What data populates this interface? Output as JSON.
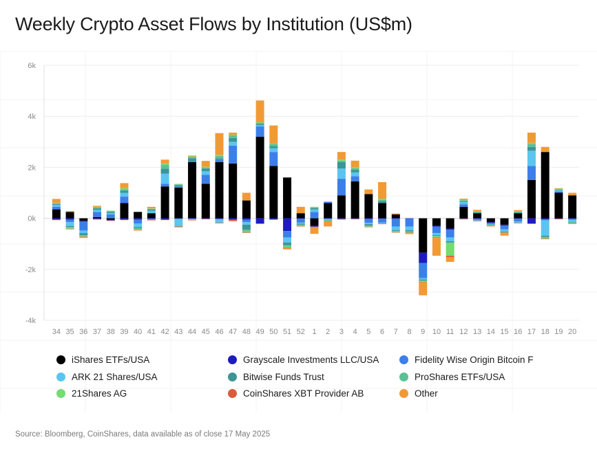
{
  "chart_data": {
    "type": "bar",
    "stacked": true,
    "title": "Weekly Crypto Asset Flows by Institution (US$m)",
    "ylim": [
      -4000,
      6000
    ],
    "yticks": [
      -4000,
      -2000,
      0,
      2000,
      4000,
      6000
    ],
    "ytick_labels": [
      "-4k",
      "-2k",
      "0k",
      "2k",
      "4k",
      "6k"
    ],
    "grid": true,
    "legend_position": "bottom",
    "categories": [
      "34",
      "35",
      "36",
      "37",
      "38",
      "39",
      "40",
      "41",
      "42",
      "43",
      "44",
      "45",
      "46",
      "47",
      "48",
      "49",
      "50",
      "51",
      "52",
      "1",
      "2",
      "3",
      "4",
      "5",
      "6",
      "7",
      "8",
      "9",
      "10",
      "11",
      "12",
      "13",
      "14",
      "15",
      "16",
      "17",
      "18",
      "19",
      "20"
    ],
    "series": [
      {
        "name": "iShares ETFs/USA",
        "color": "#000000",
        "values": [
          350,
          250,
          -100,
          50,
          -50,
          600,
          250,
          200,
          1250,
          1200,
          2200,
          1350,
          2200,
          2150,
          700,
          3200,
          2050,
          1600,
          200,
          -300,
          600,
          900,
          1450,
          950,
          600,
          150,
          0,
          -1350,
          -300,
          -400,
          450,
          200,
          -150,
          -250,
          200,
          1500,
          2600,
          1000,
          900
        ]
      },
      {
        "name": "Grayscale Investments LLC/USA",
        "color": "#1d1bbf",
        "values": [
          -50,
          -50,
          -30,
          -30,
          -30,
          -50,
          -50,
          -20,
          -50,
          -20,
          -20,
          -20,
          -30,
          -50,
          -50,
          -200,
          -40,
          -500,
          -20,
          -30,
          -20,
          -30,
          -20,
          -30,
          -20,
          -20,
          -20,
          -400,
          -30,
          -50,
          -20,
          -20,
          -40,
          -30,
          -20,
          -200,
          -40,
          -20,
          -30
        ]
      },
      {
        "name": "Fidelity Wise Origin Bitcoin F",
        "color": "#3d7fe8",
        "values": [
          100,
          -100,
          -350,
          200,
          150,
          250,
          -150,
          -40,
          100,
          50,
          50,
          350,
          100,
          700,
          -100,
          400,
          550,
          -250,
          -150,
          250,
          50,
          650,
          200,
          -150,
          -150,
          -300,
          -300,
          -600,
          -250,
          -300,
          100,
          -50,
          -30,
          -150,
          -100,
          550,
          -40,
          50,
          -30
        ]
      },
      {
        "name": "ARK 21 Shares/USA",
        "color": "#5bc5f0",
        "values": [
          80,
          -150,
          -100,
          80,
          50,
          150,
          -150,
          100,
          400,
          -300,
          -40,
          150,
          -150,
          150,
          -100,
          50,
          150,
          -200,
          -40,
          100,
          -40,
          400,
          150,
          -50,
          -40,
          -150,
          -150,
          -50,
          -80,
          -150,
          100,
          -30,
          -20,
          -80,
          -60,
          600,
          -600,
          50,
          -80
        ]
      },
      {
        "name": "Bitwise Funds Trust",
        "color": "#3b9596",
        "values": [
          30,
          -40,
          -80,
          50,
          50,
          80,
          -40,
          40,
          200,
          50,
          100,
          100,
          50,
          150,
          -200,
          50,
          80,
          -100,
          -40,
          50,
          -20,
          250,
          100,
          -50,
          80,
          -30,
          -40,
          -40,
          -30,
          -50,
          30,
          30,
          -20,
          -20,
          30,
          150,
          -50,
          20,
          -20
        ]
      },
      {
        "name": "ProShares ETFs/USA",
        "color": "#5ec095",
        "values": [
          30,
          -40,
          -30,
          40,
          30,
          60,
          -30,
          30,
          150,
          30,
          50,
          40,
          100,
          100,
          -60,
          50,
          70,
          -60,
          -30,
          30,
          -20,
          60,
          60,
          -30,
          40,
          -20,
          -30,
          -30,
          -30,
          -20,
          20,
          20,
          -10,
          -20,
          20,
          120,
          -40,
          20,
          -20
        ]
      },
      {
        "name": "21Shares AG",
        "color": "#74dc70",
        "values": [
          20,
          -30,
          -30,
          30,
          20,
          40,
          -20,
          20,
          50,
          20,
          30,
          30,
          40,
          30,
          -40,
          20,
          40,
          -40,
          -20,
          20,
          -20,
          40,
          50,
          -20,
          50,
          -20,
          -20,
          -30,
          -30,
          -500,
          20,
          20,
          -10,
          -10,
          20,
          40,
          -30,
          20,
          -20
        ]
      },
      {
        "name": "CoinShares XBT Provider AB",
        "color": "#dc5a3a",
        "values": [
          -20,
          -20,
          -20,
          -20,
          -20,
          -20,
          -20,
          -20,
          -20,
          -20,
          -20,
          -20,
          -20,
          -60,
          -20,
          -20,
          -20,
          -20,
          -20,
          -20,
          -20,
          -20,
          -20,
          -20,
          -20,
          -20,
          -20,
          -20,
          -20,
          -60,
          -20,
          -20,
          -20,
          -20,
          -20,
          -20,
          -20,
          -20,
          -20
        ]
      },
      {
        "name": "Other",
        "color": "#f19a35",
        "values": [
          150,
          30,
          -30,
          40,
          0,
          200,
          -20,
          60,
          150,
          -20,
          30,
          230,
          850,
          80,
          300,
          850,
          700,
          -50,
          250,
          -260,
          -180,
          300,
          250,
          180,
          650,
          40,
          -40,
          -500,
          -700,
          -180,
          50,
          60,
          -20,
          -100,
          50,
          400,
          200,
          20,
          100
        ]
      }
    ]
  },
  "title": "Weekly Crypto Asset Flows by Institution (US$m)",
  "source_note": "Source: Bloomberg, CoinShares, data available as of close 17 May 2025"
}
